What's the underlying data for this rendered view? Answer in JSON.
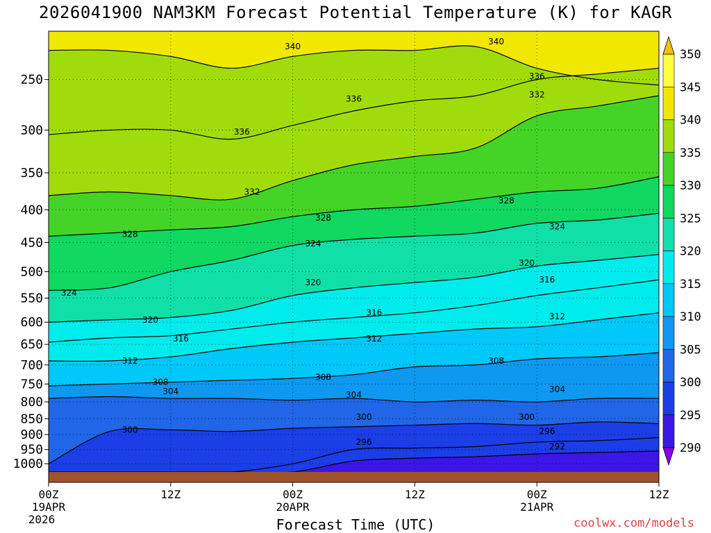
{
  "title": "2026041900 NAM3KM Forecast Potential Temperature (K) for KAGR",
  "xlabel": "Forecast Time (UTC)",
  "credit": "coolwx.com/models",
  "chart_data": {
    "type": "heatmap",
    "title": "2026041900 NAM3KM Forecast Potential Temperature (K) for KAGR",
    "xlabel": "Forecast Time (UTC)",
    "ylabel": "",
    "y_log_scale": true,
    "y_inverted": true,
    "ylim": [
      1030,
      210
    ],
    "xlim": [
      0,
      60
    ],
    "yticks": [
      250,
      300,
      350,
      400,
      450,
      500,
      550,
      600,
      650,
      700,
      750,
      800,
      850,
      900,
      950,
      1000
    ],
    "xticks": [
      {
        "hour": 0,
        "lines": [
          "00Z",
          "19APR",
          "2026"
        ]
      },
      {
        "hour": 12,
        "lines": [
          "12Z"
        ]
      },
      {
        "hour": 24,
        "lines": [
          "00Z",
          "20APR"
        ]
      },
      {
        "hour": 36,
        "lines": [
          "12Z"
        ]
      },
      {
        "hour": 48,
        "lines": [
          "00Z",
          "21APR"
        ]
      },
      {
        "hour": 60,
        "lines": [
          "12Z"
        ]
      }
    ],
    "grid": true,
    "colorbar": {
      "levels": [
        290,
        295,
        300,
        305,
        310,
        315,
        320,
        325,
        330,
        335,
        340,
        345,
        350
      ],
      "colors": [
        "#8a00e6",
        "#3c16e6",
        "#1b3ee6",
        "#2066e6",
        "#0e98f0",
        "#00c8f8",
        "#00ecec",
        "#10e0a8",
        "#10d860",
        "#44d428",
        "#a0dc0c",
        "#f0e800",
        "#ffff40",
        "#f4c010"
      ]
    },
    "times": [
      0,
      6,
      12,
      18,
      24,
      30,
      36,
      42,
      48,
      54,
      60
    ],
    "isentropes": [
      {
        "theta": 292,
        "labeled": true,
        "p": [
          1030,
          1030,
          1030,
          1030,
          1030,
          990,
          980,
          975,
          965,
          960,
          955
        ]
      },
      {
        "theta": 296,
        "labeled": true,
        "p": [
          1030,
          1030,
          1030,
          1030,
          1000,
          950,
          945,
          940,
          925,
          920,
          910
        ]
      },
      {
        "theta": 300,
        "labeled": true,
        "p": [
          1000,
          890,
          885,
          890,
          880,
          875,
          870,
          865,
          870,
          860,
          865
        ]
      },
      {
        "theta": 304,
        "labeled": true,
        "p": [
          790,
          785,
          790,
          790,
          795,
          790,
          800,
          795,
          800,
          790,
          790
        ]
      },
      {
        "theta": 308,
        "labeled": true,
        "p": [
          755,
          750,
          745,
          740,
          735,
          725,
          705,
          700,
          685,
          680,
          670
        ]
      },
      {
        "theta": 312,
        "labeled": true,
        "p": [
          690,
          690,
          680,
          660,
          645,
          635,
          625,
          615,
          610,
          595,
          580
        ]
      },
      {
        "theta": 316,
        "labeled": true,
        "p": [
          645,
          635,
          630,
          615,
          600,
          590,
          580,
          565,
          545,
          530,
          515
        ]
      },
      {
        "theta": 320,
        "labeled": true,
        "p": [
          600,
          595,
          590,
          575,
          545,
          530,
          520,
          510,
          490,
          480,
          470
        ]
      },
      {
        "theta": 324,
        "labeled": true,
        "p": [
          535,
          530,
          500,
          480,
          455,
          445,
          440,
          435,
          420,
          415,
          405
        ]
      },
      {
        "theta": 328,
        "labeled": true,
        "p": [
          440,
          435,
          430,
          425,
          410,
          400,
          395,
          385,
          375,
          370,
          355
        ]
      },
      {
        "theta": 332,
        "labeled": true,
        "p": [
          380,
          375,
          380,
          385,
          360,
          340,
          330,
          320,
          285,
          275,
          265
        ]
      },
      {
        "theta": 336,
        "labeled": true,
        "p": [
          305,
          300,
          300,
          310,
          295,
          280,
          270,
          265,
          250,
          245,
          240
        ]
      },
      {
        "theta": 340,
        "labeled": true,
        "p": [
          225,
          225,
          230,
          240,
          230,
          225,
          225,
          222,
          240,
          250,
          255
        ]
      }
    ],
    "contour_labels": [
      {
        "text": "340",
        "hour": 24,
        "p": 222
      },
      {
        "text": "340",
        "hour": 44,
        "p": 218
      },
      {
        "text": "336",
        "hour": 48,
        "p": 247
      },
      {
        "text": "332",
        "hour": 48,
        "p": 264
      },
      {
        "text": "336",
        "hour": 30,
        "p": 268
      },
      {
        "text": "336",
        "hour": 19,
        "p": 302
      },
      {
        "text": "332",
        "hour": 20,
        "p": 375
      },
      {
        "text": "328",
        "hour": 45,
        "p": 387
      },
      {
        "text": "328",
        "hour": 27,
        "p": 412
      },
      {
        "text": "328",
        "hour": 8,
        "p": 437
      },
      {
        "text": "324",
        "hour": 50,
        "p": 425
      },
      {
        "text": "324",
        "hour": 26,
        "p": 452
      },
      {
        "text": "320",
        "hour": 47,
        "p": 485
      },
      {
        "text": "316",
        "hour": 49,
        "p": 515
      },
      {
        "text": "320",
        "hour": 26,
        "p": 520
      },
      {
        "text": "324",
        "hour": 2,
        "p": 540
      },
      {
        "text": "316",
        "hour": 32,
        "p": 580
      },
      {
        "text": "312",
        "hour": 50,
        "p": 588
      },
      {
        "text": "320",
        "hour": 10,
        "p": 595
      },
      {
        "text": "316",
        "hour": 13,
        "p": 637
      },
      {
        "text": "312",
        "hour": 32,
        "p": 637
      },
      {
        "text": "308",
        "hour": 44,
        "p": 690
      },
      {
        "text": "312",
        "hour": 8,
        "p": 690
      },
      {
        "text": "308",
        "hour": 27,
        "p": 732
      },
      {
        "text": "308",
        "hour": 11,
        "p": 745
      },
      {
        "text": "304",
        "hour": 12,
        "p": 770
      },
      {
        "text": "304",
        "hour": 50,
        "p": 765
      },
      {
        "text": "304",
        "hour": 30,
        "p": 780
      },
      {
        "text": "300",
        "hour": 8,
        "p": 885
      },
      {
        "text": "300",
        "hour": 31,
        "p": 845
      },
      {
        "text": "300",
        "hour": 47,
        "p": 845
      },
      {
        "text": "296",
        "hour": 49,
        "p": 890
      },
      {
        "text": "296",
        "hour": 31,
        "p": 925
      },
      {
        "text": "292",
        "hour": 50,
        "p": 940
      }
    ],
    "ground_color": "#a0522d"
  }
}
